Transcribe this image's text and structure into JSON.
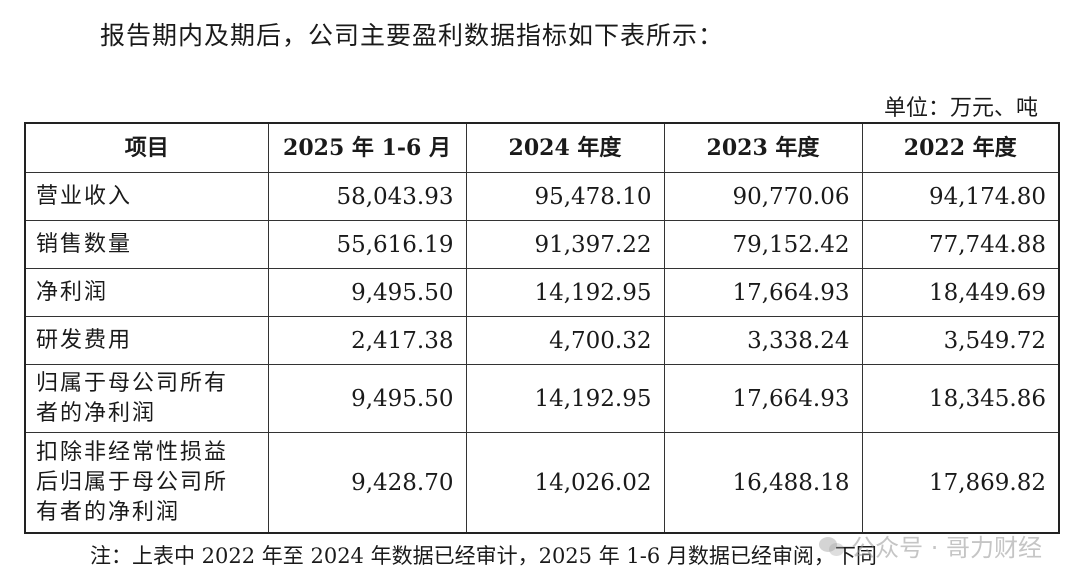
{
  "intro": "报告期内及期后，公司主要盈利数据指标如下表所示：",
  "unit": "单位：万元、吨",
  "table": {
    "headers": [
      "项目",
      "2025 年 1-6 月",
      "2024 年度",
      "2023 年度",
      "2022 年度"
    ],
    "rows": [
      {
        "label": "营业收入",
        "values": [
          "58,043.93",
          "95,478.10",
          "90,770.06",
          "94,174.80"
        ]
      },
      {
        "label": "销售数量",
        "values": [
          "55,616.19",
          "91,397.22",
          "79,152.42",
          "77,744.88"
        ]
      },
      {
        "label": "净利润",
        "values": [
          "9,495.50",
          "14,192.95",
          "17,664.93",
          "18,449.69"
        ]
      },
      {
        "label": "研发费用",
        "values": [
          "2,417.38",
          "4,700.32",
          "3,338.24",
          "3,549.72"
        ]
      },
      {
        "label_lines": [
          "归属于母公司所有",
          "者的净利润"
        ],
        "values": [
          "9,495.50",
          "14,192.95",
          "17,664.93",
          "18,345.86"
        ]
      },
      {
        "label_lines": [
          "扣除非经常性损益",
          "后归属于母公司所",
          "有者的净利润"
        ],
        "values": [
          "9,428.70",
          "14,026.02",
          "16,488.18",
          "17,869.82"
        ]
      }
    ]
  },
  "note": "注：上表中 2022 年至 2024 年数据已经审计，2025 年 1-6 月数据已经审阅，下同",
  "watermark": "公众号 · 哥力财经"
}
